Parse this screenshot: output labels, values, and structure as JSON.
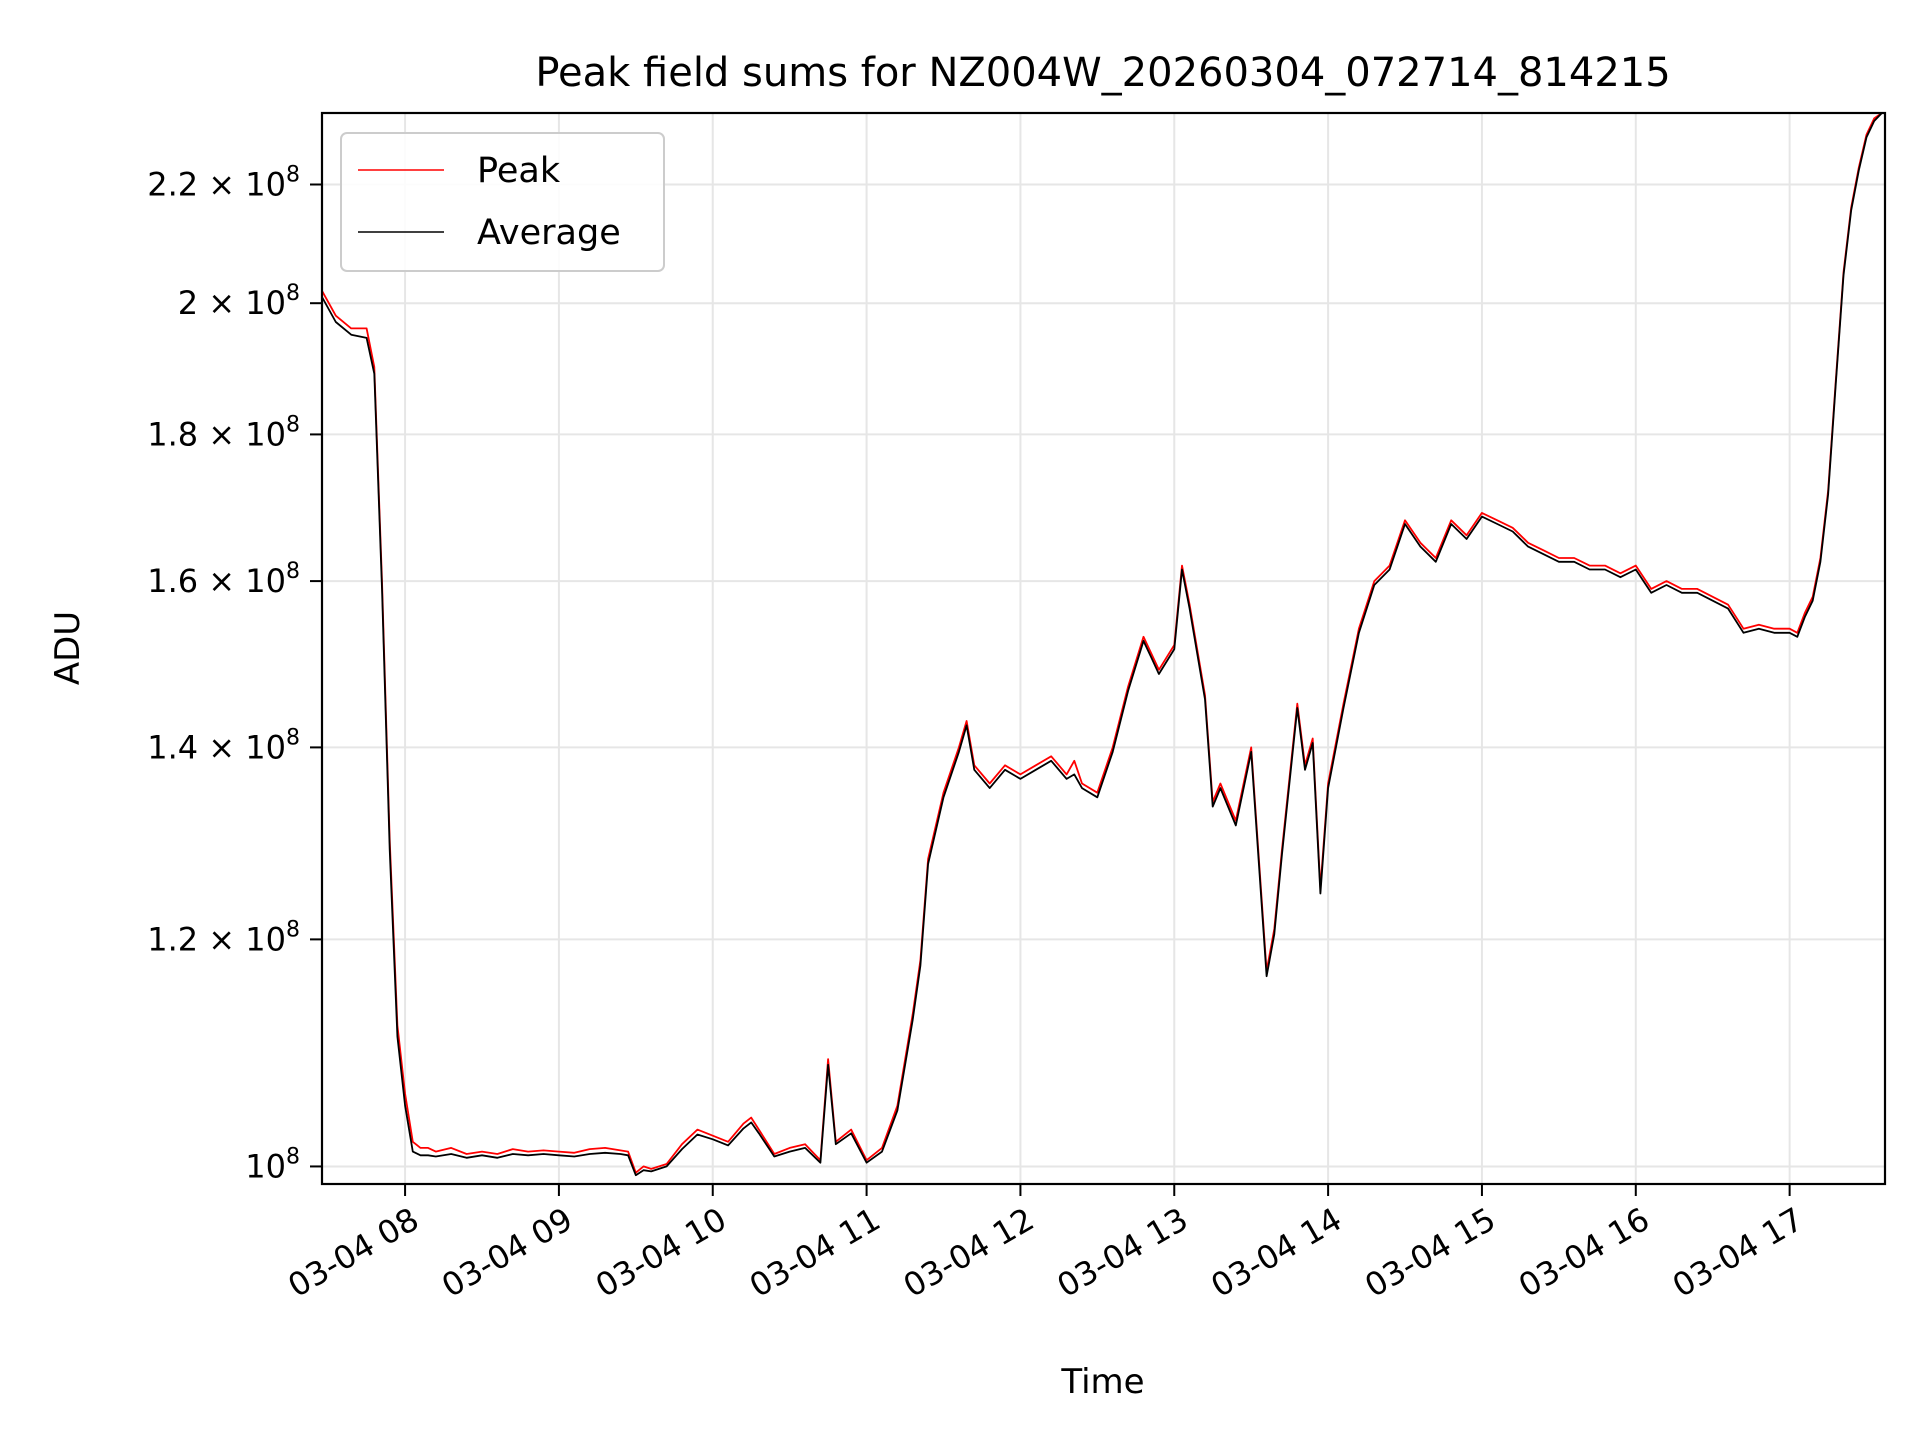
{
  "chart_data": {
    "type": "line",
    "title": "Peak field sums for NZ004W_20260304_072714_814215",
    "xlabel": "Time",
    "ylabel": "ADU",
    "yscale": "log",
    "xlim": [
      7.46,
      17.62
    ],
    "ylim": [
      98600000,
      233000000
    ],
    "grid": true,
    "legend_position": "upper-left",
    "x_ticks": [
      {
        "value": 8,
        "label": "03-04 08"
      },
      {
        "value": 9,
        "label": "03-04 09"
      },
      {
        "value": 10,
        "label": "03-04 10"
      },
      {
        "value": 11,
        "label": "03-04 11"
      },
      {
        "value": 12,
        "label": "03-04 12"
      },
      {
        "value": 13,
        "label": "03-04 13"
      },
      {
        "value": 14,
        "label": "03-04 14"
      },
      {
        "value": 15,
        "label": "03-04 15"
      },
      {
        "value": 16,
        "label": "03-04 16"
      },
      {
        "value": 17,
        "label": "03-04 17"
      }
    ],
    "y_ticks": [
      {
        "value": 100000000,
        "mantissa": "",
        "exponent": "8",
        "label": "10^8"
      },
      {
        "value": 120000000,
        "mantissa": "1.2",
        "exponent": "8",
        "label": "1.2 × 10^8"
      },
      {
        "value": 140000000,
        "mantissa": "1.4",
        "exponent": "8",
        "label": "1.4 × 10^8"
      },
      {
        "value": 160000000,
        "mantissa": "1.6",
        "exponent": "8",
        "label": "1.6 × 10^8"
      },
      {
        "value": 180000000,
        "mantissa": "1.8",
        "exponent": "8",
        "label": "1.8 × 10^8"
      },
      {
        "value": 200000000,
        "mantissa": "2",
        "exponent": "8",
        "label": "2 × 10^8"
      },
      {
        "value": 220000000,
        "mantissa": "2.2",
        "exponent": "8",
        "label": "2.2 × 10^8"
      }
    ],
    "x_units": "hour of day (2026-03-04)",
    "series": [
      {
        "name": "Peak",
        "color": "#ff0000",
        "x": [
          7.46,
          7.55,
          7.65,
          7.75,
          7.8,
          7.85,
          7.9,
          7.95,
          8.0,
          8.05,
          8.1,
          8.15,
          8.2,
          8.3,
          8.4,
          8.5,
          8.6,
          8.7,
          8.8,
          8.9,
          9.0,
          9.1,
          9.2,
          9.3,
          9.4,
          9.45,
          9.5,
          9.55,
          9.6,
          9.7,
          9.8,
          9.9,
          10.0,
          10.1,
          10.2,
          10.25,
          10.3,
          10.4,
          10.5,
          10.6,
          10.7,
          10.75,
          10.8,
          10.9,
          11.0,
          11.1,
          11.2,
          11.3,
          11.35,
          11.4,
          11.5,
          11.6,
          11.65,
          11.7,
          11.8,
          11.9,
          12.0,
          12.1,
          12.2,
          12.3,
          12.35,
          12.4,
          12.5,
          12.6,
          12.7,
          12.8,
          12.85,
          12.9,
          13.0,
          13.05,
          13.1,
          13.2,
          13.25,
          13.3,
          13.4,
          13.5,
          13.6,
          13.65,
          13.7,
          13.8,
          13.85,
          13.9,
          13.95,
          14.0,
          14.1,
          14.2,
          14.3,
          14.4,
          14.5,
          14.6,
          14.7,
          14.8,
          14.9,
          15.0,
          15.1,
          15.2,
          15.3,
          15.4,
          15.5,
          15.6,
          15.7,
          15.8,
          15.9,
          16.0,
          16.1,
          16.2,
          16.3,
          16.4,
          16.5,
          16.6,
          16.7,
          16.8,
          16.9,
          17.0,
          17.05,
          17.1,
          17.15,
          17.2,
          17.25,
          17.3,
          17.35,
          17.4,
          17.45,
          17.5,
          17.55,
          17.6
        ],
        "values": [
          202000000,
          198000000,
          196000000,
          196000000,
          190000000,
          160000000,
          130000000,
          112000000,
          106000000,
          102000000,
          101500000,
          101500000,
          101200000,
          101500000,
          101000000,
          101200000,
          101000000,
          101400000,
          101200000,
          101300000,
          101200000,
          101100000,
          101400000,
          101500000,
          101300000,
          101200000,
          99500000,
          100000000,
          99800000,
          100200000,
          101800000,
          103000000,
          102500000,
          102000000,
          103500000,
          104000000,
          103000000,
          101000000,
          101500000,
          101800000,
          100500000,
          109000000,
          102000000,
          103000000,
          100500000,
          101500000,
          105000000,
          113000000,
          118000000,
          128000000,
          135000000,
          140000000,
          143000000,
          138000000,
          136000000,
          138000000,
          137000000,
          138000000,
          139000000,
          137000000,
          138500000,
          136000000,
          135000000,
          140000000,
          147000000,
          153000000,
          151000000,
          149000000,
          152000000,
          162000000,
          157000000,
          146000000,
          134000000,
          136000000,
          132000000,
          140000000,
          117000000,
          121000000,
          129000000,
          145000000,
          138000000,
          141000000,
          125000000,
          136000000,
          145000000,
          154000000,
          160000000,
          162000000,
          168000000,
          165000000,
          163000000,
          168000000,
          166000000,
          169000000,
          168000000,
          167000000,
          165000000,
          164000000,
          163000000,
          163000000,
          162000000,
          162000000,
          161000000,
          162000000,
          159000000,
          160000000,
          159000000,
          159000000,
          158000000,
          157000000,
          154000000,
          154500000,
          154000000,
          154000000,
          153500000,
          156000000,
          158000000,
          163000000,
          172000000,
          188000000,
          205000000,
          216000000,
          223000000,
          229000000,
          232000000,
          233000000
        ]
      },
      {
        "name": "Average",
        "color": "#000000",
        "x": [
          7.46,
          7.55,
          7.65,
          7.75,
          7.8,
          7.85,
          7.9,
          7.95,
          8.0,
          8.05,
          8.1,
          8.15,
          8.2,
          8.3,
          8.4,
          8.5,
          8.6,
          8.7,
          8.8,
          8.9,
          9.0,
          9.1,
          9.2,
          9.3,
          9.4,
          9.45,
          9.5,
          9.55,
          9.6,
          9.7,
          9.8,
          9.9,
          10.0,
          10.1,
          10.2,
          10.25,
          10.3,
          10.4,
          10.5,
          10.6,
          10.7,
          10.75,
          10.8,
          10.9,
          11.0,
          11.1,
          11.2,
          11.3,
          11.35,
          11.4,
          11.5,
          11.6,
          11.65,
          11.7,
          11.8,
          11.9,
          12.0,
          12.1,
          12.2,
          12.3,
          12.35,
          12.4,
          12.5,
          12.6,
          12.7,
          12.8,
          12.85,
          12.9,
          13.0,
          13.05,
          13.1,
          13.2,
          13.25,
          13.3,
          13.4,
          13.5,
          13.6,
          13.65,
          13.7,
          13.8,
          13.85,
          13.9,
          13.95,
          14.0,
          14.1,
          14.2,
          14.3,
          14.4,
          14.5,
          14.6,
          14.7,
          14.8,
          14.9,
          15.0,
          15.1,
          15.2,
          15.3,
          15.4,
          15.5,
          15.6,
          15.7,
          15.8,
          15.9,
          16.0,
          16.1,
          16.2,
          16.3,
          16.4,
          16.5,
          16.6,
          16.7,
          16.8,
          16.9,
          17.0,
          17.05,
          17.1,
          17.15,
          17.2,
          17.25,
          17.3,
          17.35,
          17.4,
          17.45,
          17.5,
          17.55,
          17.6
        ],
        "values": [
          201000000,
          197000000,
          195000000,
          194500000,
          189000000,
          159000000,
          129000000,
          111000000,
          105000000,
          101200000,
          100900000,
          100900000,
          100800000,
          101000000,
          100700000,
          100900000,
          100700000,
          101000000,
          100900000,
          101000000,
          100900000,
          100800000,
          101000000,
          101100000,
          101000000,
          100900000,
          99300000,
          99700000,
          99600000,
          100000000,
          101400000,
          102600000,
          102200000,
          101700000,
          103100000,
          103600000,
          102700000,
          100800000,
          101200000,
          101500000,
          100300000,
          108500000,
          101800000,
          102700000,
          100300000,
          101200000,
          104600000,
          112500000,
          117500000,
          127500000,
          134500000,
          139500000,
          142500000,
          137500000,
          135500000,
          137500000,
          136500000,
          137500000,
          138500000,
          136500000,
          137000000,
          135500000,
          134500000,
          139500000,
          146500000,
          152500000,
          150500000,
          148500000,
          151500000,
          161500000,
          156500000,
          145500000,
          133500000,
          135500000,
          131500000,
          139500000,
          116500000,
          120500000,
          128500000,
          144500000,
          137500000,
          140500000,
          124500000,
          135500000,
          144500000,
          153500000,
          159500000,
          161500000,
          167500000,
          164500000,
          162500000,
          167500000,
          165500000,
          168500000,
          167500000,
          166500000,
          164500000,
          163500000,
          162500000,
          162500000,
          161500000,
          161500000,
          160500000,
          161500000,
          158500000,
          159500000,
          158500000,
          158500000,
          157500000,
          156500000,
          153500000,
          154000000,
          153500000,
          153500000,
          153000000,
          155500000,
          157500000,
          162500000,
          171500000,
          187500000,
          204500000,
          215500000,
          222500000,
          228500000,
          231500000,
          233000000
        ]
      }
    ]
  }
}
